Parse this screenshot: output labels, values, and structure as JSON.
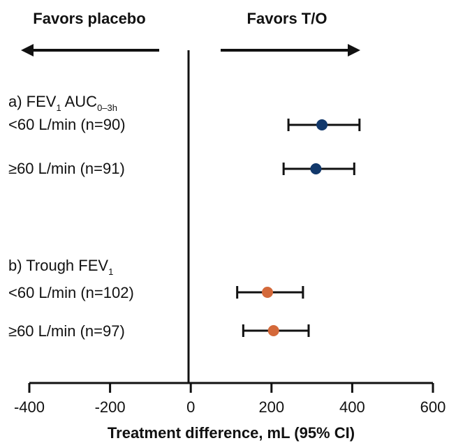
{
  "chart_data": {
    "type": "forest",
    "direction_labels": {
      "left": "Favors placebo",
      "right": "Favors T/O"
    },
    "xlabel": "Treatment difference, mL (95% CI)",
    "xlim": [
      -400,
      600
    ],
    "xticks": [
      -400,
      -200,
      0,
      200,
      400,
      600
    ],
    "xtick_labels": [
      "-400",
      "-200",
      "0",
      "200",
      "400",
      "600"
    ],
    "groups": [
      {
        "title_main": "a) FEV",
        "title_sub": "1",
        "title_after": " AUC",
        "title_sub2": "0–3h",
        "color": "#12386b",
        "rows": [
          {
            "label": "<60 L/min (n=90)",
            "estimate": 325,
            "ci": [
              242,
              418
            ]
          },
          {
            "label": "≥60 L/min (n=91)",
            "estimate": 310,
            "ci": [
              230,
              405
            ]
          }
        ]
      },
      {
        "title_main": "b) Trough FEV",
        "title_sub": "1",
        "title_after": "",
        "title_sub2": "",
        "color": "#d4693a",
        "rows": [
          {
            "label": "<60 L/min (n=102)",
            "estimate": 190,
            "ci": [
              115,
              278
            ]
          },
          {
            "label": "≥60 L/min (n=97)",
            "estimate": 205,
            "ci": [
              130,
              292
            ]
          }
        ]
      }
    ]
  }
}
